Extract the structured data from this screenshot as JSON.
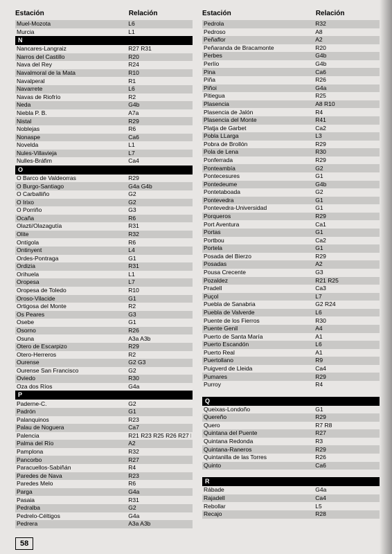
{
  "headers": {
    "station": "Estación",
    "relation": "Relación"
  },
  "pageNumber": "58",
  "colors": {
    "background": "#e8e6e4",
    "altRow": "#c9c8c6",
    "letterBg": "#000000",
    "letterFg": "#ffffff",
    "textColor": "#000000"
  },
  "leftColumn": [
    {
      "type": "row",
      "alt": true,
      "station": "Muel-Mozota",
      "rel": "L6"
    },
    {
      "type": "row",
      "station": "Murcia",
      "rel": "L1"
    },
    {
      "type": "letter",
      "label": "N"
    },
    {
      "type": "row",
      "station": "Nancares-Langraiz",
      "rel": "R27 R31"
    },
    {
      "type": "row",
      "alt": true,
      "station": "Narros del Castillo",
      "rel": "R20"
    },
    {
      "type": "row",
      "station": "Nava del Rey",
      "rel": "R24"
    },
    {
      "type": "row",
      "alt": true,
      "station": "Navalmoral de la Mata",
      "rel": "R10"
    },
    {
      "type": "row",
      "station": "Navalperal",
      "rel": "R1"
    },
    {
      "type": "row",
      "alt": true,
      "station": "Navarrete",
      "rel": "L6"
    },
    {
      "type": "row",
      "station": "Navas de Riofrío",
      "rel": "R2"
    },
    {
      "type": "row",
      "alt": true,
      "station": "Neda",
      "rel": "G4b"
    },
    {
      "type": "row",
      "station": "Niebla P. B.",
      "rel": "A7a"
    },
    {
      "type": "row",
      "alt": true,
      "station": "Nistal",
      "rel": "R29"
    },
    {
      "type": "row",
      "station": "Noblejas",
      "rel": "R6"
    },
    {
      "type": "row",
      "alt": true,
      "station": "Nonaspe",
      "rel": "Ca6"
    },
    {
      "type": "row",
      "station": "Novelda",
      "rel": "L1"
    },
    {
      "type": "row",
      "alt": true,
      "station": "Nules-Villavieja",
      "rel": "L7"
    },
    {
      "type": "row",
      "station": "Nulles-Bráfim",
      "rel": "Ca4"
    },
    {
      "type": "letter",
      "label": "O"
    },
    {
      "type": "row",
      "station": "O Barco de Valdeorras",
      "rel": "R29"
    },
    {
      "type": "row",
      "alt": true,
      "station": "O Burgo-Santiago",
      "rel": "G4a G4b"
    },
    {
      "type": "row",
      "station": "O Carballiño",
      "rel": "G2"
    },
    {
      "type": "row",
      "alt": true,
      "station": "O Irixo",
      "rel": "G2"
    },
    {
      "type": "row",
      "station": "O Porriño",
      "rel": "G3"
    },
    {
      "type": "row",
      "alt": true,
      "station": "Ocaña",
      "rel": "R6"
    },
    {
      "type": "row",
      "station": "Olazti/Olazagutía",
      "rel": "R31"
    },
    {
      "type": "row",
      "alt": true,
      "station": "Olite",
      "rel": "R32"
    },
    {
      "type": "row",
      "station": "Ontígola",
      "rel": "R6"
    },
    {
      "type": "row",
      "alt": true,
      "station": "Ontinyent",
      "rel": "L4"
    },
    {
      "type": "row",
      "station": "Ordes-Pontraga",
      "rel": "G1"
    },
    {
      "type": "row",
      "alt": true,
      "station": "Ordizia",
      "rel": "R31"
    },
    {
      "type": "row",
      "station": "Orihuela",
      "rel": "L1"
    },
    {
      "type": "row",
      "alt": true,
      "station": "Oropesa",
      "rel": "L7"
    },
    {
      "type": "row",
      "station": "Oropesa de Toledo",
      "rel": "R10"
    },
    {
      "type": "row",
      "alt": true,
      "station": "Oroso-Vilacide",
      "rel": "G1"
    },
    {
      "type": "row",
      "station": "Ortigosa del Monte",
      "rel": "R2"
    },
    {
      "type": "row",
      "alt": true,
      "station": "Os Peares",
      "rel": "G3"
    },
    {
      "type": "row",
      "station": "Osebe",
      "rel": "G1"
    },
    {
      "type": "row",
      "alt": true,
      "station": "Osorno",
      "rel": "R26"
    },
    {
      "type": "row",
      "station": "Osuna",
      "rel": "A3a A3b"
    },
    {
      "type": "row",
      "alt": true,
      "station": "Otero de Escarpizo",
      "rel": "R29"
    },
    {
      "type": "row",
      "station": "Otero-Herreros",
      "rel": "R2"
    },
    {
      "type": "row",
      "alt": true,
      "station": "Ourense",
      "rel": "G2 G3"
    },
    {
      "type": "row",
      "station": "Ourense San Francisco",
      "rel": "G2"
    },
    {
      "type": "row",
      "alt": true,
      "station": "Oviedo",
      "rel": "R30"
    },
    {
      "type": "row",
      "station": "Oza dos Ríos",
      "rel": "G4a"
    },
    {
      "type": "letter",
      "label": "P"
    },
    {
      "type": "row",
      "station": "Paderne-C.",
      "rel": "G2"
    },
    {
      "type": "row",
      "alt": true,
      "station": "Padrón",
      "rel": "G1"
    },
    {
      "type": "row",
      "station": "Palanquinos",
      "rel": "R23"
    },
    {
      "type": "row",
      "alt": true,
      "station": "Palau de Noguera",
      "rel": "Ca7"
    },
    {
      "type": "row",
      "station": "Palencia",
      "rel": "R21 R23 R25 R26 R27 R28"
    },
    {
      "type": "row",
      "alt": true,
      "station": "Palma del Río",
      "rel": "A2"
    },
    {
      "type": "row",
      "station": "Pamplona",
      "rel": "R32"
    },
    {
      "type": "row",
      "alt": true,
      "station": "Pancorbo",
      "rel": "R27"
    },
    {
      "type": "row",
      "station": "Paracuellos-Sabiñán",
      "rel": "R4"
    },
    {
      "type": "row",
      "alt": true,
      "station": "Paredes de Nava",
      "rel": "R23"
    },
    {
      "type": "row",
      "station": "Paredes Melo",
      "rel": "R6"
    },
    {
      "type": "row",
      "alt": true,
      "station": "Parga",
      "rel": "G4a"
    },
    {
      "type": "row",
      "station": "Pasaia",
      "rel": "R31"
    },
    {
      "type": "row",
      "alt": true,
      "station": "Pedralba",
      "rel": "G2"
    },
    {
      "type": "row",
      "station": "Pedrelo-Céltigos",
      "rel": "G4a"
    },
    {
      "type": "row",
      "alt": true,
      "station": "Pedrera",
      "rel": "A3a A3b"
    }
  ],
  "rightColumn": [
    {
      "type": "row",
      "alt": true,
      "station": "Pedrola",
      "rel": "R32"
    },
    {
      "type": "row",
      "station": "Pedroso",
      "rel": "A8"
    },
    {
      "type": "row",
      "alt": true,
      "station": "Peñaflor",
      "rel": "A2"
    },
    {
      "type": "row",
      "station": "Peñaranda de Bracamonte",
      "rel": "R20"
    },
    {
      "type": "row",
      "alt": true,
      "station": "Perbes",
      "rel": "G4b"
    },
    {
      "type": "row",
      "station": "Perlío",
      "rel": "G4b"
    },
    {
      "type": "row",
      "alt": true,
      "station": "Pina",
      "rel": "Ca6"
    },
    {
      "type": "row",
      "station": "Piña",
      "rel": "R26"
    },
    {
      "type": "row",
      "alt": true,
      "station": "Piñoi",
      "rel": "G4a"
    },
    {
      "type": "row",
      "station": "Pitiegua",
      "rel": "R25"
    },
    {
      "type": "row",
      "alt": true,
      "station": "Plasencia",
      "rel": "A8 R10"
    },
    {
      "type": "row",
      "station": "Plasencia de Jalón",
      "rel": "R4"
    },
    {
      "type": "row",
      "alt": true,
      "station": "Plasencia del Monte",
      "rel": "R41"
    },
    {
      "type": "row",
      "station": "Platja de Garbet",
      "rel": "Ca2"
    },
    {
      "type": "row",
      "alt": true,
      "station": "Pobla LLarga",
      "rel": "L3"
    },
    {
      "type": "row",
      "station": "Pobra de Brollón",
      "rel": "R29"
    },
    {
      "type": "row",
      "alt": true,
      "station": "Pola de Lena",
      "rel": "R30"
    },
    {
      "type": "row",
      "station": "Ponferrada",
      "rel": "R29"
    },
    {
      "type": "row",
      "alt": true,
      "station": "Ponteambía",
      "rel": "G2"
    },
    {
      "type": "row",
      "station": "Pontecesures",
      "rel": "G1"
    },
    {
      "type": "row",
      "alt": true,
      "station": "Pontedeume",
      "rel": "G4b"
    },
    {
      "type": "row",
      "station": "Pontetaboada",
      "rel": "G2"
    },
    {
      "type": "row",
      "alt": true,
      "station": "Pontevedra",
      "rel": "G1"
    },
    {
      "type": "row",
      "station": "Pontevedra-Universidad",
      "rel": "G1"
    },
    {
      "type": "row",
      "alt": true,
      "station": "Porqueros",
      "rel": "R29"
    },
    {
      "type": "row",
      "station": "Port Aventura",
      "rel": "Ca1"
    },
    {
      "type": "row",
      "alt": true,
      "station": "Portas",
      "rel": "G1"
    },
    {
      "type": "row",
      "station": "Portbou",
      "rel": "Ca2"
    },
    {
      "type": "row",
      "alt": true,
      "station": "Portela",
      "rel": "G1"
    },
    {
      "type": "row",
      "station": "Posada del Bierzo",
      "rel": "R29"
    },
    {
      "type": "row",
      "alt": true,
      "station": "Posadas",
      "rel": "A2"
    },
    {
      "type": "row",
      "station": "Pousa Crecente",
      "rel": "G3"
    },
    {
      "type": "row",
      "alt": true,
      "station": "Pozaldez",
      "rel": "R21 R25"
    },
    {
      "type": "row",
      "station": "Pradell",
      "rel": "Ca3"
    },
    {
      "type": "row",
      "alt": true,
      "station": "Puçol",
      "rel": "L7"
    },
    {
      "type": "row",
      "station": "Puebla de Sanabria",
      "rel": "G2 R24"
    },
    {
      "type": "row",
      "alt": true,
      "station": "Puebla de Valverde",
      "rel": "L6"
    },
    {
      "type": "row",
      "station": "Puente de los Fierros",
      "rel": "R30"
    },
    {
      "type": "row",
      "alt": true,
      "station": "Puente Genil",
      "rel": "A4"
    },
    {
      "type": "row",
      "station": "Puerto de Santa María",
      "rel": "A1"
    },
    {
      "type": "row",
      "alt": true,
      "station": "Puerto Escandón",
      "rel": "L6"
    },
    {
      "type": "row",
      "station": "Puerto Real",
      "rel": "A1"
    },
    {
      "type": "row",
      "alt": true,
      "station": "Puertollano",
      "rel": "R9"
    },
    {
      "type": "row",
      "station": "Puigverd de Lleida",
      "rel": "Ca4"
    },
    {
      "type": "row",
      "alt": true,
      "station": "Pumares",
      "rel": "R29"
    },
    {
      "type": "row",
      "station": "Purroy",
      "rel": "R4"
    },
    {
      "type": "spacer"
    },
    {
      "type": "letter",
      "label": "Q"
    },
    {
      "type": "row",
      "station": "Queixas-Londoño",
      "rel": "G1"
    },
    {
      "type": "row",
      "alt": true,
      "station": "Quereño",
      "rel": "R29"
    },
    {
      "type": "row",
      "station": "Quero",
      "rel": "R7 R8"
    },
    {
      "type": "row",
      "alt": true,
      "station": "Quintana del Puente",
      "rel": "R27"
    },
    {
      "type": "row",
      "station": "Quintana Redonda",
      "rel": "R3"
    },
    {
      "type": "row",
      "alt": true,
      "station": "Quintana-Raneros",
      "rel": "R29"
    },
    {
      "type": "row",
      "station": "Quintanilla de las Torres",
      "rel": "R26"
    },
    {
      "type": "row",
      "alt": true,
      "station": "Quinto",
      "rel": "Ca6"
    },
    {
      "type": "spacer"
    },
    {
      "type": "letter",
      "label": "R"
    },
    {
      "type": "row",
      "station": "Rábade",
      "rel": "G4a"
    },
    {
      "type": "row",
      "alt": true,
      "station": "Rajadell",
      "rel": "Ca4"
    },
    {
      "type": "row",
      "station": "Rebollar",
      "rel": "L5"
    },
    {
      "type": "row",
      "alt": true,
      "station": "Recajo",
      "rel": "R28"
    }
  ]
}
